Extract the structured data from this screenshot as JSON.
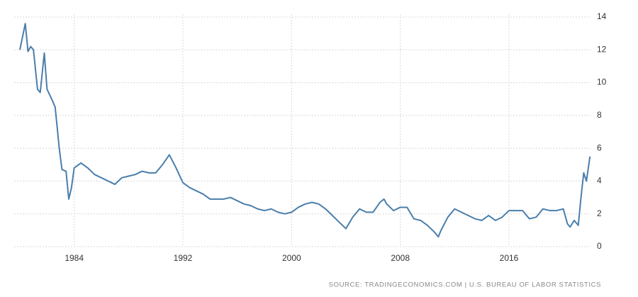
{
  "chart_data": {
    "type": "line",
    "source": "SOURCE: TRADINGECONOMICS.COM | U.S. BUREAU OF LABOR STATISTICS",
    "color": "#4a7eab",
    "grid": true,
    "x": [
      1980.0,
      1980.4,
      1980.6,
      1980.8,
      1981.0,
      1981.3,
      1981.5,
      1981.8,
      1982.0,
      1982.4,
      1982.6,
      1982.9,
      1983.1,
      1983.4,
      1983.6,
      1983.8,
      1984.0,
      1984.5,
      1985.0,
      1985.5,
      1986.0,
      1986.5,
      1987.0,
      1987.5,
      1988.0,
      1988.5,
      1989.0,
      1989.5,
      1990.0,
      1990.5,
      1991.0,
      1991.5,
      1992.0,
      1992.5,
      1993.0,
      1993.5,
      1994.0,
      1994.5,
      1995.0,
      1995.5,
      1996.0,
      1996.5,
      1997.0,
      1997.5,
      1998.0,
      1998.5,
      1999.0,
      1999.5,
      2000.0,
      2000.5,
      2001.0,
      2001.5,
      2002.0,
      2002.5,
      2003.0,
      2003.5,
      2004.0,
      2004.5,
      2005.0,
      2005.5,
      2006.0,
      2006.5,
      2006.8,
      2007.0,
      2007.5,
      2008.0,
      2008.5,
      2009.0,
      2009.5,
      2010.0,
      2010.5,
      2010.8,
      2011.0,
      2011.5,
      2012.0,
      2012.5,
      2013.0,
      2013.5,
      2014.0,
      2014.5,
      2015.0,
      2015.5,
      2016.0,
      2016.5,
      2017.0,
      2017.5,
      2018.0,
      2018.5,
      2019.0,
      2019.5,
      2020.0,
      2020.3,
      2020.5,
      2020.8,
      2021.1,
      2021.3,
      2021.5,
      2021.7,
      2021.96
    ],
    "values": [
      12.0,
      13.6,
      11.9,
      12.2,
      12.0,
      9.6,
      9.4,
      11.8,
      9.6,
      8.9,
      8.5,
      6.0,
      4.7,
      4.6,
      2.9,
      3.6,
      4.8,
      5.1,
      4.8,
      4.4,
      4.2,
      4.0,
      3.8,
      4.2,
      4.3,
      4.4,
      4.6,
      4.5,
      4.5,
      5.0,
      5.6,
      4.8,
      3.9,
      3.6,
      3.4,
      3.2,
      2.9,
      2.9,
      2.9,
      3.0,
      2.8,
      2.6,
      2.5,
      2.3,
      2.2,
      2.3,
      2.1,
      2.0,
      2.1,
      2.4,
      2.6,
      2.7,
      2.6,
      2.3,
      1.9,
      1.5,
      1.1,
      1.8,
      2.3,
      2.1,
      2.1,
      2.7,
      2.9,
      2.6,
      2.2,
      2.4,
      2.4,
      1.7,
      1.6,
      1.3,
      0.9,
      0.6,
      1.0,
      1.8,
      2.3,
      2.1,
      1.9,
      1.7,
      1.6,
      1.9,
      1.6,
      1.8,
      2.2,
      2.2,
      2.2,
      1.7,
      1.8,
      2.3,
      2.2,
      2.2,
      2.3,
      1.4,
      1.2,
      1.6,
      1.3,
      3.0,
      4.5,
      4.0,
      5.5
    ],
    "xlim": [
      1980,
      2022
    ],
    "xticks": [
      1984,
      1992,
      2000,
      2008,
      2016
    ],
    "ylim": [
      0,
      14
    ],
    "yticks": [
      0,
      2,
      4,
      6,
      8,
      10,
      12,
      14
    ]
  }
}
